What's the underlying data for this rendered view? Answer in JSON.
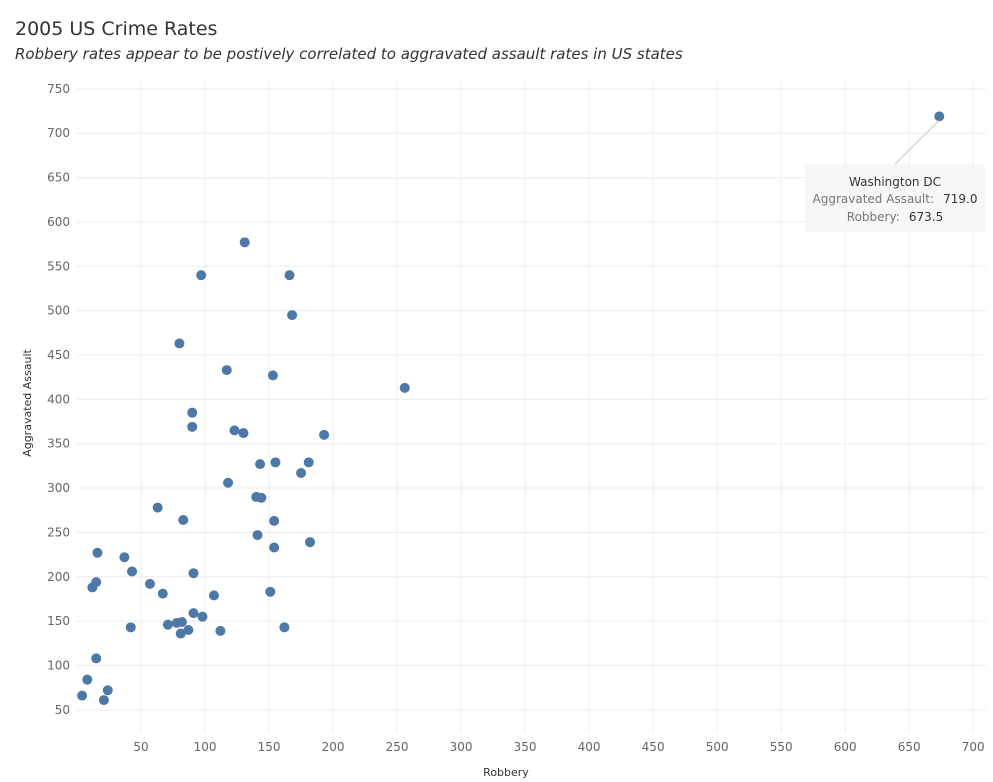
{
  "chart_data": {
    "type": "scatter",
    "title": "2005 US Crime Rates",
    "subtitle": "Robbery rates appear to be postively correlated to aggravated assault rates in US states",
    "xlabel": "Robbery",
    "ylabel": "Aggravated Assault",
    "xlim": [
      0,
      710
    ],
    "ylim": [
      25,
      760
    ],
    "xticks": [
      50,
      100,
      150,
      200,
      250,
      300,
      350,
      400,
      450,
      500,
      550,
      600,
      650,
      700
    ],
    "yticks": [
      50,
      100,
      150,
      200,
      250,
      300,
      350,
      400,
      450,
      500,
      550,
      600,
      650,
      700,
      750
    ],
    "grid": true,
    "point_color": "#4e79a7",
    "points": [
      {
        "x": 673.5,
        "y": 719.0
      },
      {
        "x": 256,
        "y": 413
      },
      {
        "x": 131,
        "y": 577
      },
      {
        "x": 97,
        "y": 540
      },
      {
        "x": 166,
        "y": 540
      },
      {
        "x": 168,
        "y": 495
      },
      {
        "x": 80,
        "y": 463
      },
      {
        "x": 117,
        "y": 433
      },
      {
        "x": 153,
        "y": 427
      },
      {
        "x": 90,
        "y": 385
      },
      {
        "x": 90,
        "y": 369
      },
      {
        "x": 123,
        "y": 365
      },
      {
        "x": 130,
        "y": 362
      },
      {
        "x": 193,
        "y": 360
      },
      {
        "x": 143,
        "y": 327
      },
      {
        "x": 155,
        "y": 329
      },
      {
        "x": 181,
        "y": 329
      },
      {
        "x": 175,
        "y": 317
      },
      {
        "x": 118,
        "y": 306
      },
      {
        "x": 140,
        "y": 290
      },
      {
        "x": 144,
        "y": 289
      },
      {
        "x": 63,
        "y": 278
      },
      {
        "x": 83,
        "y": 264
      },
      {
        "x": 154,
        "y": 263
      },
      {
        "x": 141,
        "y": 247
      },
      {
        "x": 182,
        "y": 239
      },
      {
        "x": 154,
        "y": 233
      },
      {
        "x": 16,
        "y": 227
      },
      {
        "x": 37,
        "y": 222
      },
      {
        "x": 43,
        "y": 206
      },
      {
        "x": 91,
        "y": 204
      },
      {
        "x": 15,
        "y": 194
      },
      {
        "x": 12,
        "y": 188
      },
      {
        "x": 57,
        "y": 192
      },
      {
        "x": 67,
        "y": 181
      },
      {
        "x": 107,
        "y": 179
      },
      {
        "x": 151,
        "y": 183
      },
      {
        "x": 91,
        "y": 159
      },
      {
        "x": 98,
        "y": 155
      },
      {
        "x": 78,
        "y": 148
      },
      {
        "x": 82,
        "y": 149
      },
      {
        "x": 71,
        "y": 146
      },
      {
        "x": 42,
        "y": 143
      },
      {
        "x": 87,
        "y": 140
      },
      {
        "x": 81,
        "y": 136
      },
      {
        "x": 112,
        "y": 139
      },
      {
        "x": 162,
        "y": 143
      },
      {
        "x": 15,
        "y": 108
      },
      {
        "x": 8,
        "y": 84
      },
      {
        "x": 24,
        "y": 72
      },
      {
        "x": 4,
        "y": 66
      },
      {
        "x": 21,
        "y": 61
      }
    ],
    "tooltip": {
      "name": "Washington DC",
      "rows": [
        {
          "label": "Aggravated Assault:",
          "value": "719.0"
        },
        {
          "label": "Robbery:",
          "value": "673.5"
        }
      ]
    }
  }
}
